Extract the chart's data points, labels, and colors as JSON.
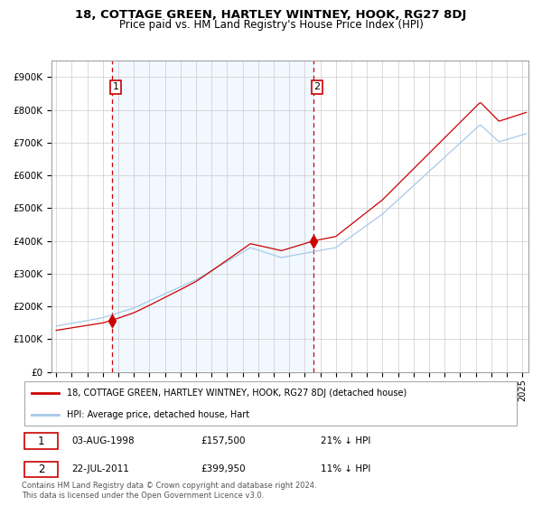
{
  "title": "18, COTTAGE GREEN, HARTLEY WINTNEY, HOOK, RG27 8DJ",
  "subtitle": "Price paid vs. HM Land Registry's House Price Index (HPI)",
  "legend_line1": "18, COTTAGE GREEN, HARTLEY WINTNEY, HOOK, RG27 8DJ (detached house)",
  "legend_line2": "HPI: Average price, detached house, Hart",
  "annotation1_date": "03-AUG-1998",
  "annotation1_price": "£157,500",
  "annotation1_hpi": "21% ↓ HPI",
  "annotation2_date": "22-JUL-2011",
  "annotation2_price": "£399,950",
  "annotation2_hpi": "11% ↓ HPI",
  "sale1_year": 1998.58,
  "sale1_value": 157500,
  "sale2_year": 2011.55,
  "sale2_value": 399950,
  "hpi_color": "#a8c8e8",
  "price_color": "#cc0000",
  "plot_bg": "#ffffff",
  "grid_color": "#cccccc",
  "vline_color": "#cc0000",
  "shade_color": "#ddeeff",
  "ylim": [
    0,
    950000
  ],
  "yticks": [
    0,
    100000,
    200000,
    300000,
    400000,
    500000,
    600000,
    700000,
    800000,
    900000
  ],
  "footnote": "Contains HM Land Registry data © Crown copyright and database right 2024.\nThis data is licensed under the Open Government Licence v3.0."
}
